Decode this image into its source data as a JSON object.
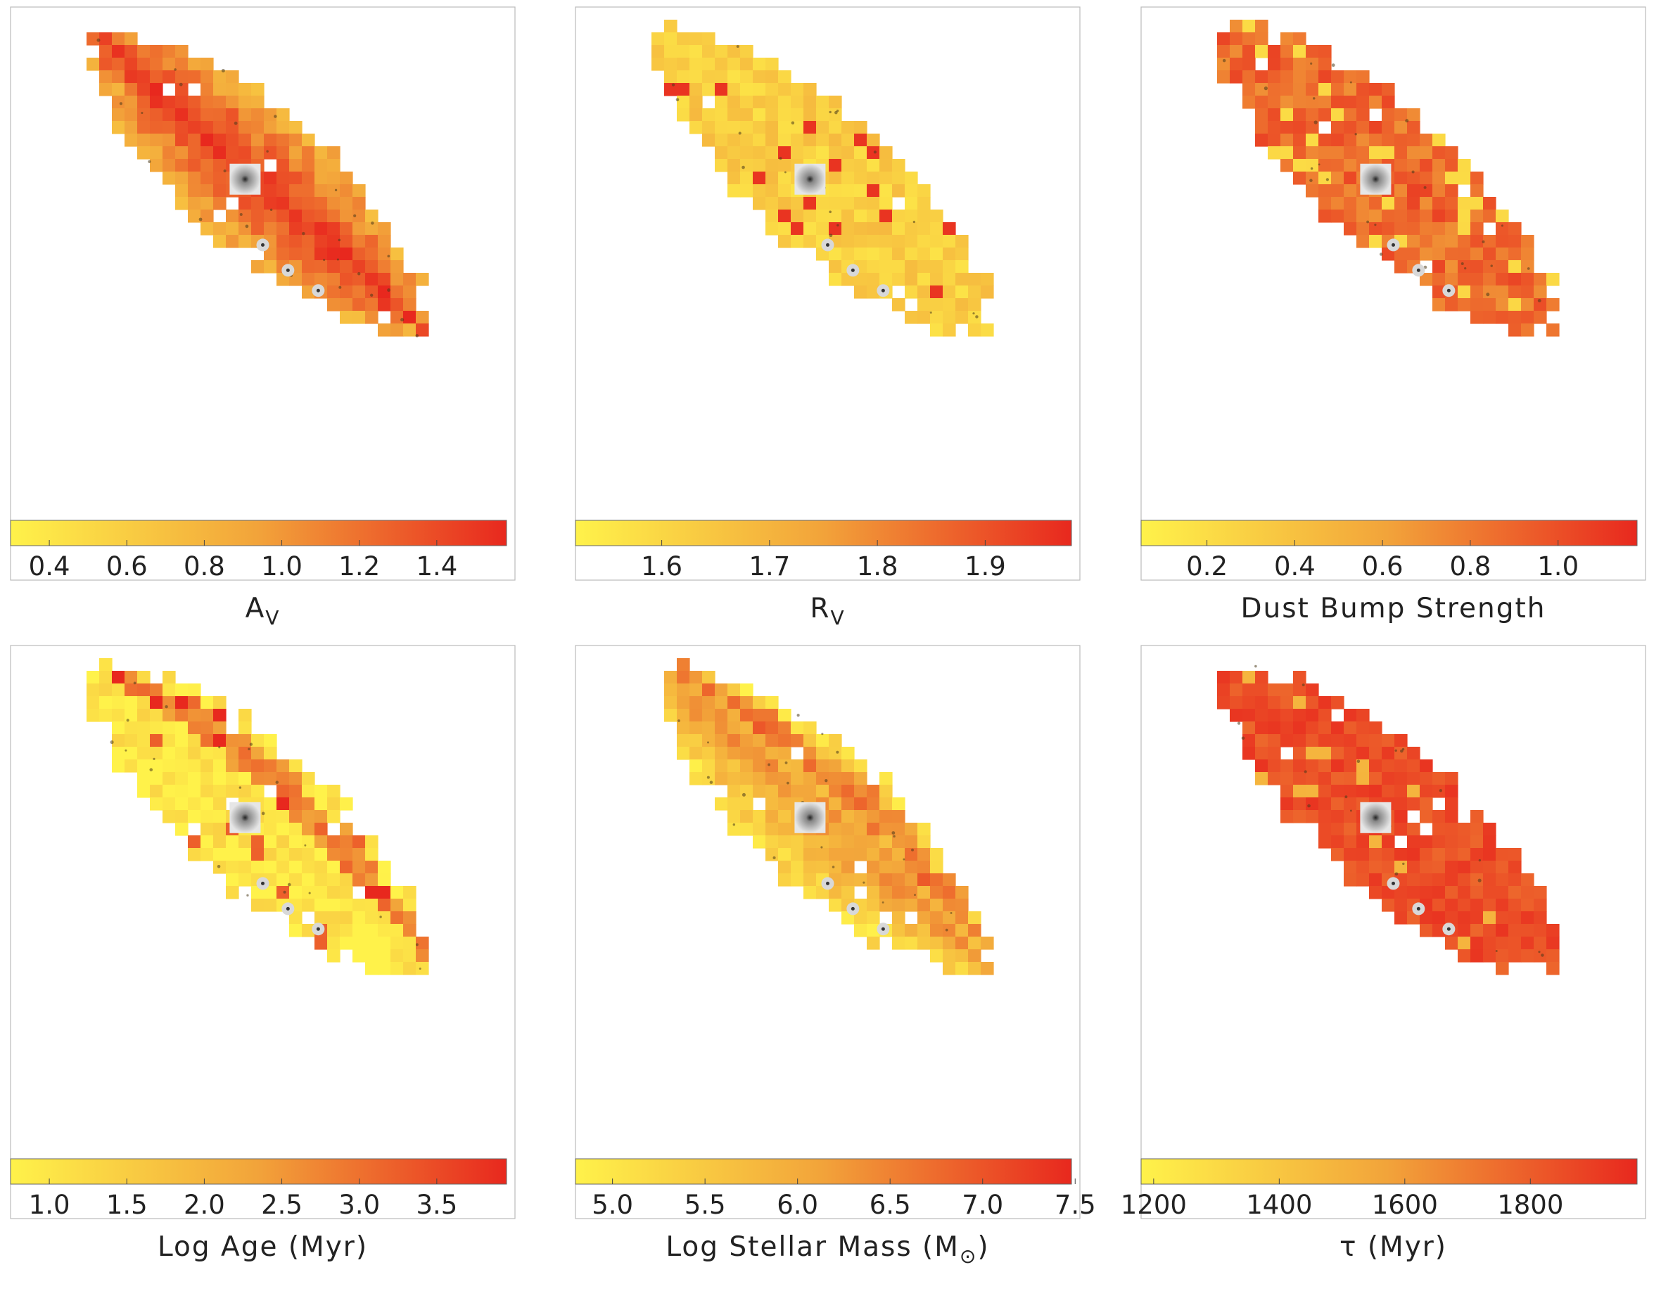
{
  "colors": {
    "low": "#fff24a",
    "mid": "#f2a33a",
    "high": "#e8281e",
    "frame": "#bbbbbb",
    "galaxy": "#9a9a9a"
  },
  "chart_data": [
    {
      "type": "heatmap",
      "title": "",
      "label": "A",
      "label_sub": "V",
      "colorbar": {
        "range": [
          0.3,
          1.58
        ],
        "ticks": [
          0.4,
          0.6,
          0.8,
          1.0,
          1.2,
          1.4
        ],
        "tick_labels": [
          "0.4",
          "0.6",
          "0.8",
          "1.0",
          "1.2",
          "1.4"
        ]
      },
      "map_pattern": "high_center"
    },
    {
      "type": "heatmap",
      "title": "",
      "label": "R",
      "label_sub": "V",
      "colorbar": {
        "range": [
          1.52,
          1.98
        ],
        "ticks": [
          1.6,
          1.7,
          1.8,
          1.9
        ],
        "tick_labels": [
          "1.6",
          "1.7",
          "1.8",
          "1.9"
        ]
      },
      "map_pattern": "low_uniform"
    },
    {
      "type": "heatmap",
      "title": "",
      "label": "Dust Bump Strength",
      "label_sub": "",
      "colorbar": {
        "range": [
          0.05,
          1.18
        ],
        "ticks": [
          0.2,
          0.4,
          0.6,
          0.8,
          1.0
        ],
        "tick_labels": [
          "0.2",
          "0.4",
          "0.6",
          "0.8",
          "1.0"
        ]
      },
      "map_pattern": "high_uniform"
    },
    {
      "type": "heatmap",
      "title": "",
      "label": "Log Age (Myr)",
      "label_sub": "",
      "colorbar": {
        "range": [
          0.75,
          3.95
        ],
        "ticks": [
          1.0,
          1.5,
          2.0,
          2.5,
          3.0,
          3.5
        ],
        "tick_labels": [
          "1.0",
          "1.5",
          "2.0",
          "2.5",
          "3.0",
          "3.5"
        ]
      },
      "map_pattern": "low_ring"
    },
    {
      "type": "heatmap",
      "title": "",
      "label": "Log Stellar Mass (M",
      "label_sub": "⊙",
      "label_suffix": ")",
      "colorbar": {
        "range": [
          4.8,
          7.48
        ],
        "ticks": [
          5.0,
          5.5,
          6.0,
          6.5,
          7.0,
          7.5
        ],
        "tick_labels": [
          "5.0",
          "5.5",
          "6.0",
          "6.5",
          "7.0",
          "7.5"
        ]
      },
      "map_pattern": "mid_center"
    },
    {
      "type": "heatmap",
      "title": "",
      "label": "τ (Myr)",
      "label_sub": "",
      "colorbar": {
        "range": [
          1180,
          1970
        ],
        "ticks": [
          1200,
          1400,
          1600,
          1800
        ],
        "tick_labels": [
          "1200",
          "1400",
          "1600",
          "1800"
        ]
      },
      "map_pattern": "high_flat"
    }
  ]
}
